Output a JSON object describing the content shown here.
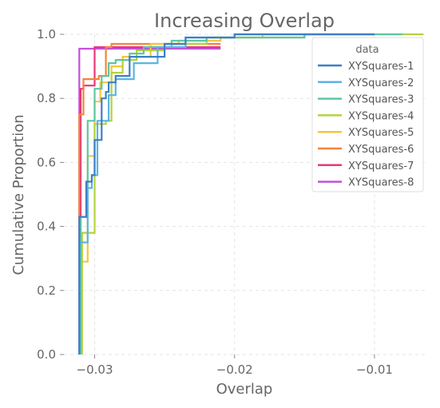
{
  "chart_data": {
    "type": "line",
    "subtype": "ecdf-step",
    "title": "Increasing Overlap",
    "xlabel": "Overlap",
    "ylabel": "Cumulative Proportion",
    "xlim": [
      -0.0322,
      -0.0064
    ],
    "ylim": [
      0,
      1.0
    ],
    "x_ticks": [
      -0.03,
      -0.02,
      -0.01
    ],
    "x_tick_labels": [
      "−0.03",
      "−0.02",
      "−0.01"
    ],
    "y_ticks": [
      0,
      0.2,
      0.4,
      0.6,
      0.8,
      1.0
    ],
    "y_tick_labels": [
      "0.0",
      "0.2",
      "0.4",
      "0.6",
      "0.8",
      "1.0"
    ],
    "grid": true,
    "legend": {
      "title": "data",
      "position": "top-right"
    },
    "series": [
      {
        "name": "XYSquares-1",
        "color": "#3c7fc7",
        "points": [
          [
            -0.0311,
            0
          ],
          [
            -0.0311,
            0.43
          ],
          [
            -0.0306,
            0.43
          ],
          [
            -0.0306,
            0.54
          ],
          [
            -0.0302,
            0.54
          ],
          [
            -0.0302,
            0.56
          ],
          [
            -0.03,
            0.56
          ],
          [
            -0.03,
            0.67
          ],
          [
            -0.0295,
            0.67
          ],
          [
            -0.0295,
            0.8
          ],
          [
            -0.0292,
            0.8
          ],
          [
            -0.0292,
            0.82
          ],
          [
            -0.029,
            0.82
          ],
          [
            -0.029,
            0.85
          ],
          [
            -0.0285,
            0.85
          ],
          [
            -0.0285,
            0.87
          ],
          [
            -0.0275,
            0.87
          ],
          [
            -0.0275,
            0.93
          ],
          [
            -0.025,
            0.93
          ],
          [
            -0.025,
            0.97
          ],
          [
            -0.0235,
            0.97
          ],
          [
            -0.0235,
            0.99
          ],
          [
            -0.02,
            0.99
          ],
          [
            -0.02,
            1.0
          ],
          [
            -0.01,
            1.0
          ]
        ]
      },
      {
        "name": "XYSquares-2",
        "color": "#5bb4e3",
        "points": [
          [
            -0.0311,
            0
          ],
          [
            -0.0311,
            0.35
          ],
          [
            -0.0305,
            0.35
          ],
          [
            -0.0305,
            0.52
          ],
          [
            -0.0302,
            0.52
          ],
          [
            -0.0302,
            0.56
          ],
          [
            -0.0298,
            0.56
          ],
          [
            -0.0298,
            0.73
          ],
          [
            -0.029,
            0.73
          ],
          [
            -0.029,
            0.81
          ],
          [
            -0.0285,
            0.81
          ],
          [
            -0.0285,
            0.86
          ],
          [
            -0.0272,
            0.86
          ],
          [
            -0.0272,
            0.91
          ],
          [
            -0.0255,
            0.91
          ],
          [
            -0.0255,
            0.96
          ],
          [
            -0.0235,
            0.96
          ],
          [
            -0.0235,
            0.99
          ],
          [
            -0.02,
            0.99
          ],
          [
            -0.02,
            1.0
          ],
          [
            -0.01,
            1.0
          ]
        ]
      },
      {
        "name": "XYSquares-3",
        "color": "#5ec6a3",
        "points": [
          [
            -0.031,
            0
          ],
          [
            -0.031,
            0.43
          ],
          [
            -0.0305,
            0.43
          ],
          [
            -0.0305,
            0.73
          ],
          [
            -0.03,
            0.73
          ],
          [
            -0.03,
            0.83
          ],
          [
            -0.0295,
            0.83
          ],
          [
            -0.0295,
            0.87
          ],
          [
            -0.029,
            0.87
          ],
          [
            -0.029,
            0.91
          ],
          [
            -0.0285,
            0.91
          ],
          [
            -0.0285,
            0.92
          ],
          [
            -0.0275,
            0.92
          ],
          [
            -0.0275,
            0.94
          ],
          [
            -0.0265,
            0.94
          ],
          [
            -0.0265,
            0.96
          ],
          [
            -0.0245,
            0.96
          ],
          [
            -0.0245,
            0.98
          ],
          [
            -0.022,
            0.98
          ],
          [
            -0.022,
            0.99
          ],
          [
            -0.015,
            0.99
          ],
          [
            -0.015,
            1.0
          ],
          [
            -0.008,
            1.0
          ]
        ]
      },
      {
        "name": "XYSquares-4",
        "color": "#b3d23f",
        "points": [
          [
            -0.0309,
            0
          ],
          [
            -0.0309,
            0.38
          ],
          [
            -0.03,
            0.38
          ],
          [
            -0.03,
            0.72
          ],
          [
            -0.0292,
            0.72
          ],
          [
            -0.0292,
            0.73
          ],
          [
            -0.0288,
            0.73
          ],
          [
            -0.0288,
            0.88
          ],
          [
            -0.028,
            0.88
          ],
          [
            -0.028,
            0.92
          ],
          [
            -0.027,
            0.92
          ],
          [
            -0.027,
            0.95
          ],
          [
            -0.025,
            0.95
          ],
          [
            -0.025,
            0.97
          ],
          [
            -0.022,
            0.97
          ],
          [
            -0.022,
            0.99
          ],
          [
            -0.015,
            0.99
          ],
          [
            -0.015,
            1.0
          ],
          [
            -0.0065,
            1.0
          ]
        ]
      },
      {
        "name": "XYSquares-5",
        "color": "#f7c53c",
        "points": [
          [
            -0.031,
            0
          ],
          [
            -0.031,
            0.29
          ],
          [
            -0.0305,
            0.29
          ],
          [
            -0.0305,
            0.62
          ],
          [
            -0.03,
            0.62
          ],
          [
            -0.03,
            0.79
          ],
          [
            -0.0296,
            0.79
          ],
          [
            -0.0296,
            0.85
          ],
          [
            -0.0288,
            0.85
          ],
          [
            -0.0288,
            0.9
          ],
          [
            -0.028,
            0.9
          ],
          [
            -0.028,
            0.93
          ],
          [
            -0.026,
            0.93
          ],
          [
            -0.026,
            0.97
          ],
          [
            -0.024,
            0.97
          ],
          [
            -0.024,
            0.98
          ],
          [
            -0.021,
            0.98
          ],
          [
            -0.021,
            0.99
          ],
          [
            -0.018,
            0.99
          ],
          [
            -0.018,
            1.0
          ],
          [
            -0.015,
            1.0
          ]
        ]
      },
      {
        "name": "XYSquares-6",
        "color": "#f2853a",
        "points": [
          [
            -0.0311,
            0
          ],
          [
            -0.0311,
            0.75
          ],
          [
            -0.0308,
            0.75
          ],
          [
            -0.0308,
            0.86
          ],
          [
            -0.0297,
            0.86
          ],
          [
            -0.0297,
            0.87
          ],
          [
            -0.0292,
            0.87
          ],
          [
            -0.0292,
            0.96
          ],
          [
            -0.0288,
            0.96
          ],
          [
            -0.0288,
            0.97
          ],
          [
            -0.021,
            0.97
          ]
        ]
      },
      {
        "name": "XYSquares-7",
        "color": "#e8357e",
        "points": [
          [
            -0.031,
            0
          ],
          [
            -0.031,
            0.83
          ],
          [
            -0.0308,
            0.83
          ],
          [
            -0.0308,
            0.84
          ],
          [
            -0.03,
            0.84
          ],
          [
            -0.03,
            0.96
          ],
          [
            -0.021,
            0.96
          ]
        ]
      },
      {
        "name": "XYSquares-8",
        "color": "#c44fdb",
        "points": [
          [
            -0.0311,
            0
          ],
          [
            -0.0311,
            0.955
          ],
          [
            -0.021,
            0.955
          ]
        ]
      }
    ]
  }
}
